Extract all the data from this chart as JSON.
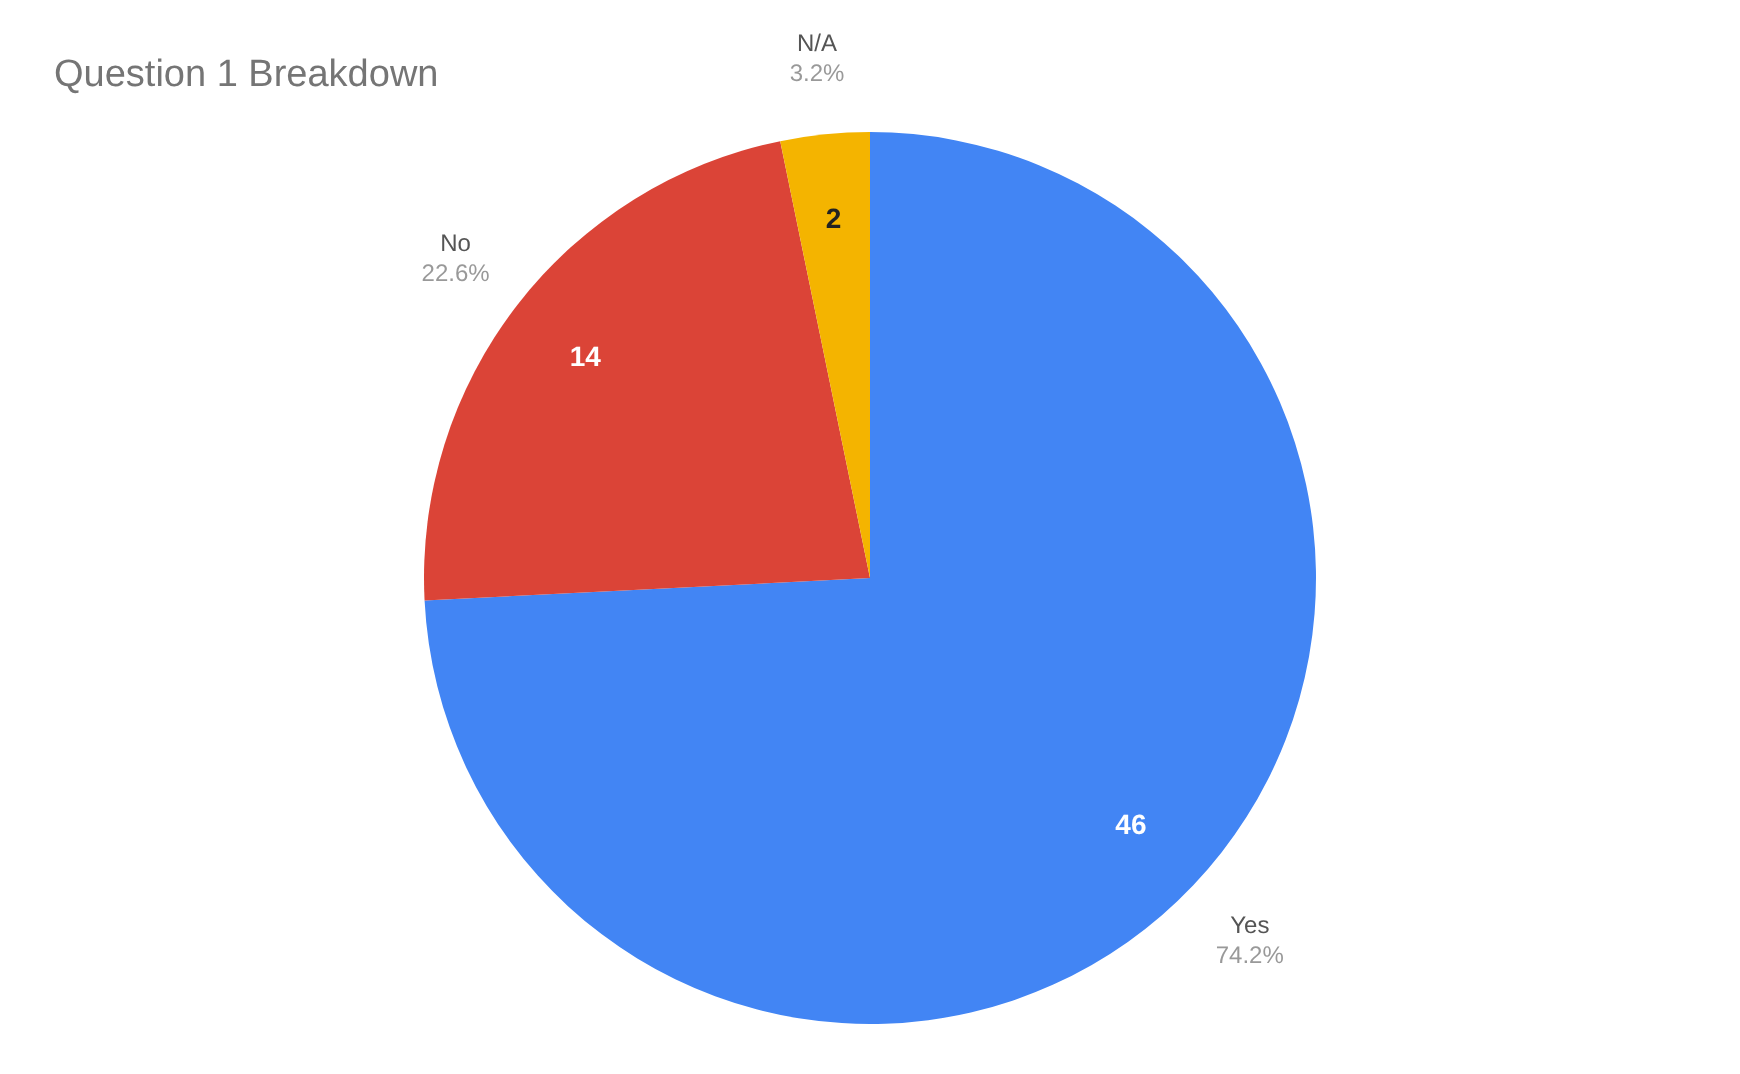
{
  "chart_data": {
    "type": "pie",
    "title": "Question 1 Breakdown",
    "categories": [
      "Yes",
      "No",
      "N/A"
    ],
    "values": [
      46,
      14,
      2
    ],
    "colors": [
      "#4285f4",
      "#db4437",
      "#f4b400"
    ],
    "data_labels": true,
    "annotations": [
      "74.2%",
      "22.6%",
      "3.2%"
    ]
  }
}
